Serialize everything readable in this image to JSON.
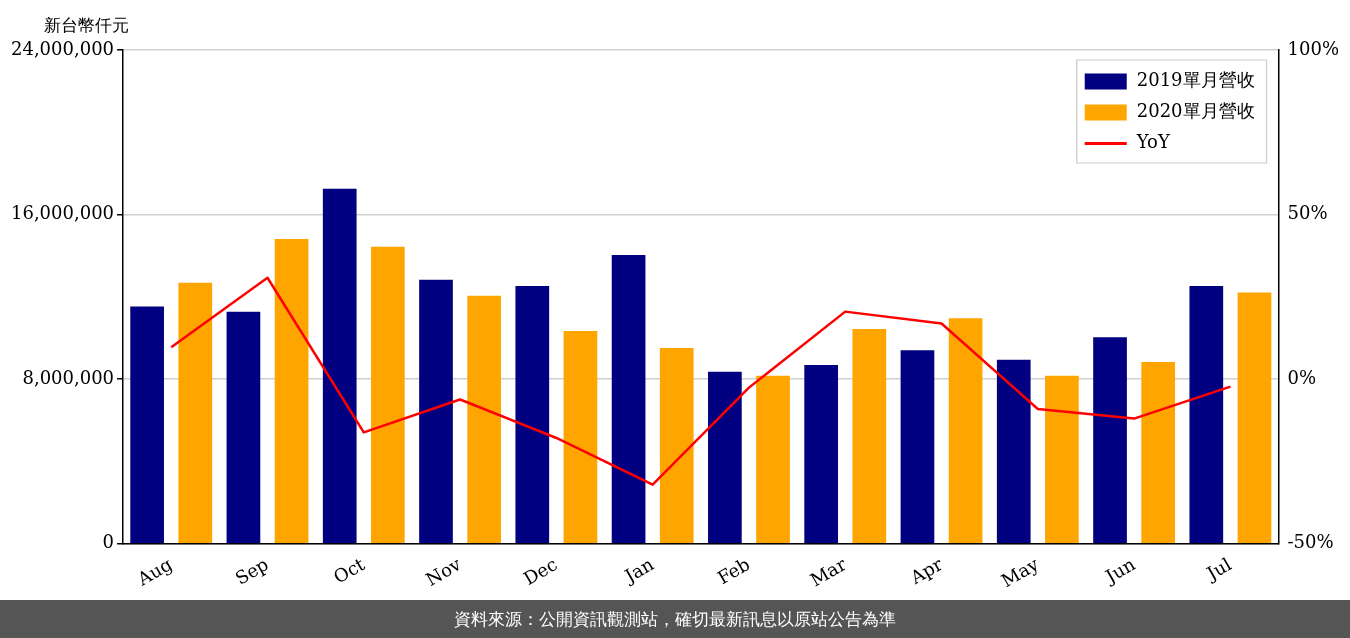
{
  "chart_data": {
    "type": "bar",
    "ylabel": "新台幣仟元",
    "categories": [
      "Aug",
      "Sep",
      "Oct",
      "Nov",
      "Dec",
      "Jan",
      "Feb",
      "Mar",
      "Apr",
      "May",
      "Jun",
      "Jul"
    ],
    "series": [
      {
        "name": "2019單月營收",
        "color": "#000080",
        "values": [
          11530000,
          11270000,
          17250000,
          12830000,
          12520000,
          14030000,
          8360000,
          8680000,
          9400000,
          8940000,
          10030000,
          12520000
        ]
      },
      {
        "name": "2020單月營收",
        "color": "#ffa500",
        "values": [
          12680000,
          14810000,
          14440000,
          12050000,
          10340000,
          9510000,
          8160000,
          10440000,
          10960000,
          8160000,
          8830000,
          12210000
        ]
      },
      {
        "name": "YoY",
        "type": "line",
        "axis": "y2",
        "color": "#ff0000",
        "values": [
          9.7,
          30.8,
          -16.2,
          -6.2,
          -17.9,
          -32.1,
          -2.6,
          20.5,
          16.9,
          -9.1,
          -12.0,
          -2.3
        ]
      }
    ],
    "ylim": [
      0,
      24000000
    ],
    "yticks": [
      {
        "value": 0,
        "label": "0"
      },
      {
        "value": 8000000,
        "label": "8,000,000"
      },
      {
        "value": 16000000,
        "label": "16,000,000"
      },
      {
        "value": 24000000,
        "label": "24,000,000"
      }
    ],
    "y2lim": [
      -50,
      100
    ],
    "y2ticks": [
      {
        "value": -50,
        "label": "-50%"
      },
      {
        "value": 0,
        "label": "0%"
      },
      {
        "value": 50,
        "label": "50%"
      },
      {
        "value": 100,
        "label": "100%"
      }
    ],
    "grid": "y",
    "legend": "top right",
    "marker": "none",
    "line_style": "solid",
    "annotations": [
      "資料來源：公開資訊觀測站，確切最新訊息以原站公告為準"
    ]
  }
}
